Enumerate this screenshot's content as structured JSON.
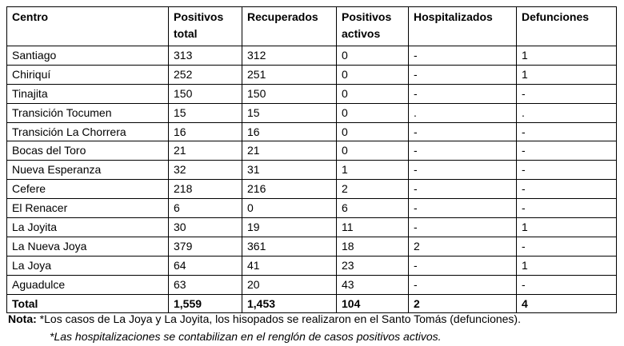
{
  "table": {
    "header": [
      [
        "Centro"
      ],
      [
        "Positivos",
        "total"
      ],
      [
        "Recuperados"
      ],
      [
        "Positivos",
        "activos"
      ],
      [
        "Hospitalizados"
      ],
      [
        "Defunciones"
      ]
    ],
    "rows": [
      [
        "Santiago",
        "313",
        "312",
        "0",
        "-",
        "1"
      ],
      [
        "Chiriquí",
        "252",
        "251",
        "0",
        "-",
        "1"
      ],
      [
        "Tinajita",
        "150",
        "150",
        "0",
        "-",
        "-"
      ],
      [
        "Transición Tocumen",
        "15",
        "15",
        "0",
        ".",
        "."
      ],
      [
        "Transición La Chorrera",
        "16",
        "16",
        "0",
        "-",
        "-"
      ],
      [
        "Bocas del Toro",
        "21",
        "21",
        "0",
        "-",
        "-"
      ],
      [
        "Nueva Esperanza",
        "32",
        "31",
        "1",
        "-",
        "-"
      ],
      [
        "Cefere",
        "218",
        "216",
        "2",
        "-",
        "-"
      ],
      [
        "El Renacer",
        "6",
        "0",
        "6",
        "-",
        "-"
      ],
      [
        "La Joyita",
        "30",
        "19",
        "11",
        "-",
        "1"
      ],
      [
        "La Nueva Joya",
        "379",
        "361",
        "18",
        "2",
        "-"
      ],
      [
        "La Joya",
        "64",
        "41",
        "23",
        "-",
        "1"
      ],
      [
        "Aguadulce",
        "63",
        "20",
        "43",
        "-",
        "-"
      ]
    ],
    "total": [
      "Total",
      "1,559",
      "1,453",
      "104",
      "2",
      "4"
    ]
  },
  "notes": {
    "label": "Nota:",
    "lines": [
      "*Los casos de La Joya y La Joyita, los hisopados se realizaron en el Santo Tomás (defunciones).",
      "*Las hospitalizaciones se contabilizan en el renglón de casos positivos activos."
    ]
  }
}
